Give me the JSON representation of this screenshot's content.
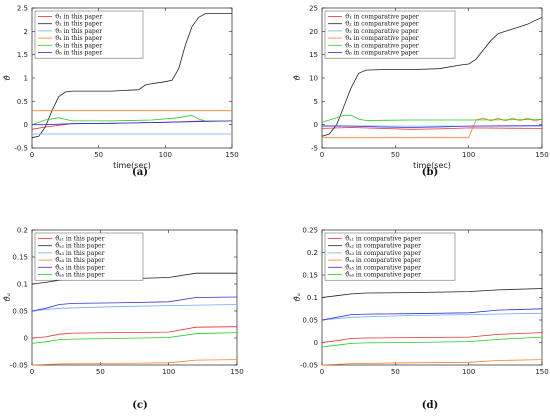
{
  "chart_data": [
    {
      "type": "line",
      "panel_label": "(a)",
      "xlabel": "time(sec)",
      "ylabel": "ϑ̂",
      "xlim": [
        0,
        150
      ],
      "ylim": [
        -0.5,
        2.5
      ],
      "xticks": [
        "0",
        "50",
        "100",
        "150"
      ],
      "yticks": [
        "-0.5",
        "0",
        "0.5",
        "1",
        "1.5",
        "2",
        "2.5"
      ],
      "grid": false,
      "legend_position": "top-left",
      "series": [
        {
          "name": "ϑ₁ in this paper",
          "color": "#e83030",
          "x": [
            0,
            10,
            30,
            60,
            100,
            130,
            150
          ],
          "y": [
            -0.1,
            -0.05,
            0.02,
            0.03,
            0.05,
            0.08,
            0.08
          ]
        },
        {
          "name": "ϑ₂ in this paper",
          "color": "#222222",
          "x": [
            0,
            5,
            10,
            15,
            20,
            25,
            30,
            40,
            60,
            80,
            85,
            90,
            95,
            100,
            105,
            110,
            115,
            120,
            125,
            130,
            140,
            150
          ],
          "y": [
            -0.28,
            -0.25,
            -0.05,
            0.3,
            0.6,
            0.7,
            0.72,
            0.72,
            0.72,
            0.75,
            0.85,
            0.88,
            0.9,
            0.92,
            0.95,
            1.2,
            1.7,
            2.1,
            2.3,
            2.38,
            2.38,
            2.38
          ]
        },
        {
          "name": "ϑ₃ in this paper",
          "color": "#6fa8ff",
          "x": [
            0,
            150
          ],
          "y": [
            -0.2,
            -0.2
          ]
        },
        {
          "name": "ϑ₄ in this paper",
          "color": "#ff7f27",
          "x": [
            0,
            150
          ],
          "y": [
            0.3,
            0.3
          ]
        },
        {
          "name": "ϑ₅ in this paper",
          "color": "#22cc22",
          "x": [
            0,
            10,
            20,
            30,
            60,
            90,
            110,
            120,
            125,
            130,
            150
          ],
          "y": [
            0.0,
            0.1,
            0.15,
            0.08,
            0.08,
            0.1,
            0.15,
            0.2,
            0.12,
            0.08,
            0.08
          ]
        },
        {
          "name": "ϑ₆ in this paper",
          "color": "#3030e0",
          "x": [
            0,
            10,
            30,
            60,
            100,
            150
          ],
          "y": [
            0.0,
            0.0,
            0.02,
            0.03,
            0.05,
            0.08
          ]
        }
      ]
    },
    {
      "type": "line",
      "panel_label": "(b)",
      "xlabel": "time(sec)",
      "ylabel": "ϑ̂",
      "xlim": [
        0,
        150
      ],
      "ylim": [
        -5,
        25
      ],
      "xticks": [
        "0",
        "50",
        "100",
        "150"
      ],
      "yticks": [
        "-5",
        "0",
        "5",
        "10",
        "15",
        "20",
        "25"
      ],
      "grid": false,
      "legend_position": "top-left",
      "series": [
        {
          "name": "ϑ₁ in comparative paper",
          "color": "#e83030",
          "x": [
            0,
            20,
            40,
            60,
            80,
            100,
            150
          ],
          "y": [
            -0.8,
            -0.6,
            -0.8,
            -1.0,
            -0.9,
            -0.7,
            -0.8
          ]
        },
        {
          "name": "ϑ₂ in comparative paper",
          "color": "#222222",
          "x": [
            0,
            5,
            10,
            15,
            20,
            25,
            30,
            40,
            60,
            80,
            95,
            100,
            105,
            110,
            115,
            120,
            125,
            130,
            140,
            150
          ],
          "y": [
            -2.5,
            -2.0,
            0.0,
            4.0,
            8.0,
            11.0,
            11.7,
            11.8,
            11.8,
            12.0,
            12.8,
            13.0,
            14.0,
            16.0,
            18.0,
            19.5,
            20.0,
            20.5,
            21.5,
            23.0
          ]
        },
        {
          "name": "ϑ₃ in comparative paper",
          "color": "#6fa8ff",
          "x": [
            0,
            50,
            100,
            150
          ],
          "y": [
            -0.2,
            -0.3,
            -0.3,
            -0.3
          ]
        },
        {
          "name": "ϑ₄ in comparative paper",
          "color": "#ff7f27",
          "x": [
            0,
            20,
            60,
            100,
            105,
            110,
            115,
            120,
            125,
            130,
            135,
            140,
            145,
            150
          ],
          "y": [
            -2.8,
            -2.8,
            -2.8,
            -2.8,
            1.0,
            1.4,
            0.8,
            1.4,
            0.8,
            1.4,
            0.8,
            1.4,
            0.8,
            1.2
          ]
        },
        {
          "name": "ϑ₅ in comparative paper",
          "color": "#22cc22",
          "x": [
            0,
            10,
            15,
            20,
            25,
            30,
            60,
            100,
            150
          ],
          "y": [
            0.5,
            1.5,
            2.0,
            2.0,
            1.2,
            0.9,
            1.0,
            1.0,
            1.1
          ]
        },
        {
          "name": "ϑ₆ in comparative paper",
          "color": "#3030e0",
          "x": [
            0,
            20,
            40,
            60,
            80,
            100,
            150
          ],
          "y": [
            -0.3,
            -0.3,
            -0.5,
            -0.6,
            -0.5,
            -0.3,
            -0.2
          ]
        }
      ]
    },
    {
      "type": "line",
      "panel_label": "(c)",
      "xlabel": "",
      "ylabel": "ϑ̂ₐ",
      "xlim": [
        0,
        150
      ],
      "ylim": [
        -0.05,
        0.2
      ],
      "xticks": [
        "0",
        "50",
        "100",
        "150"
      ],
      "yticks": [
        "-0.05",
        "0",
        "0.05",
        "0.1",
        "0.15",
        "0.2"
      ],
      "grid": false,
      "legend_position": "top-left",
      "series": [
        {
          "name": "ϑ̂ₐ₁ in this paper",
          "color": "#e83030",
          "x": [
            0,
            10,
            20,
            30,
            60,
            100,
            120,
            150
          ],
          "y": [
            0.0,
            0.002,
            0.007,
            0.009,
            0.01,
            0.011,
            0.02,
            0.021
          ]
        },
        {
          "name": "ϑ̂ₐ₂ in this paper",
          "color": "#222222",
          "x": [
            0,
            10,
            20,
            30,
            60,
            100,
            120,
            150
          ],
          "y": [
            0.1,
            0.103,
            0.107,
            0.108,
            0.109,
            0.112,
            0.12,
            0.12
          ]
        },
        {
          "name": "ϑ̂ₐ₃ in this paper",
          "color": "#6fa8ff",
          "x": [
            0,
            20,
            60,
            100,
            150
          ],
          "y": [
            0.05,
            0.055,
            0.058,
            0.06,
            0.062
          ]
        },
        {
          "name": "ϑ̂ₐ₄ in this paper",
          "color": "#ff7f27",
          "x": [
            0,
            20,
            60,
            100,
            120,
            150
          ],
          "y": [
            -0.05,
            -0.048,
            -0.047,
            -0.046,
            -0.041,
            -0.04
          ]
        },
        {
          "name": "ϑ̂ₐ₅ in this paper",
          "color": "#3030e0",
          "x": [
            0,
            10,
            20,
            30,
            60,
            100,
            120,
            150
          ],
          "y": [
            0.05,
            0.055,
            0.062,
            0.064,
            0.065,
            0.067,
            0.075,
            0.076
          ]
        },
        {
          "name": "ϑ̂ₐ₆ in this paper",
          "color": "#22cc22",
          "x": [
            0,
            10,
            20,
            30,
            60,
            100,
            120,
            150
          ],
          "y": [
            -0.01,
            -0.007,
            -0.003,
            -0.002,
            -0.001,
            0.001,
            0.008,
            0.01
          ]
        }
      ]
    },
    {
      "type": "line",
      "panel_label": "(d)",
      "xlabel": "",
      "ylabel": "ϑ̂ₐ",
      "xlim": [
        0,
        150
      ],
      "ylim": [
        -0.05,
        0.25
      ],
      "xticks": [
        "0",
        "50",
        "100",
        "150"
      ],
      "yticks": [
        "-0.05",
        "0",
        "0.05",
        "0.1",
        "0.15",
        "0.2",
        "0.25"
      ],
      "grid": false,
      "legend_position": "top-left",
      "series": [
        {
          "name": "ϑ̂ₐ₁ in comparative paper",
          "color": "#e83030",
          "x": [
            0,
            10,
            20,
            30,
            60,
            100,
            120,
            150
          ],
          "y": [
            0.0,
            0.004,
            0.009,
            0.01,
            0.011,
            0.012,
            0.018,
            0.022
          ]
        },
        {
          "name": "ϑ̂ₐ₂ in comparative paper",
          "color": "#222222",
          "x": [
            0,
            10,
            20,
            30,
            60,
            100,
            120,
            150
          ],
          "y": [
            0.1,
            0.104,
            0.108,
            0.11,
            0.111,
            0.113,
            0.117,
            0.12
          ]
        },
        {
          "name": "ϑ̂ₐ₃ in comparative paper",
          "color": "#6fa8ff",
          "x": [
            0,
            20,
            60,
            100,
            150
          ],
          "y": [
            0.05,
            0.056,
            0.06,
            0.062,
            0.065
          ]
        },
        {
          "name": "ϑ̂ₐ₄ in comparative paper",
          "color": "#ff7f27",
          "x": [
            0,
            20,
            60,
            100,
            120,
            150
          ],
          "y": [
            -0.05,
            -0.047,
            -0.045,
            -0.044,
            -0.04,
            -0.038
          ]
        },
        {
          "name": "ϑ̂ₐ₅ in comparative paper",
          "color": "#3030e0",
          "x": [
            0,
            10,
            20,
            30,
            60,
            100,
            120,
            150
          ],
          "y": [
            0.05,
            0.056,
            0.062,
            0.063,
            0.064,
            0.066,
            0.072,
            0.075
          ]
        },
        {
          "name": "ϑ̂ₐ₆ in comparative paper",
          "color": "#22cc22",
          "x": [
            0,
            10,
            20,
            30,
            60,
            100,
            120,
            150
          ],
          "y": [
            -0.01,
            -0.006,
            -0.002,
            -0.001,
            0.0,
            0.002,
            0.007,
            0.012
          ]
        }
      ]
    }
  ]
}
